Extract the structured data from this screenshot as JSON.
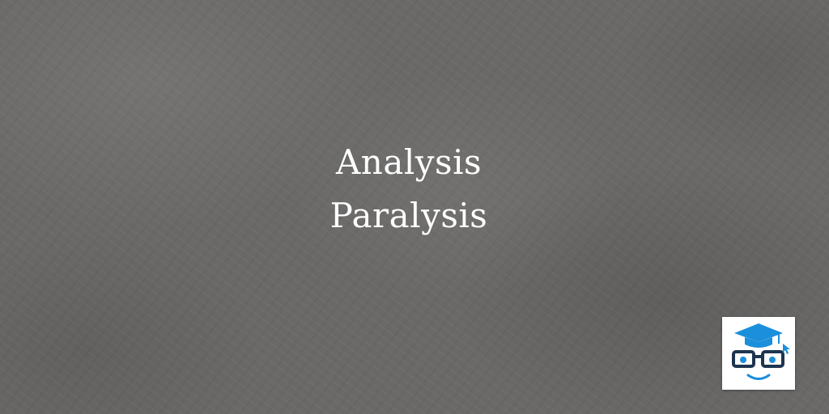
{
  "heading": {
    "line1": "Analysis",
    "line2": "Paralysis"
  },
  "logo": {
    "icon": "graduation-cap-face-icon",
    "colors": {
      "cap": "#1b8fdc",
      "glasses": "#1e3550",
      "eyes": "#1b8fdc",
      "smile": "#1b8fdc",
      "cursor": "#1b8fdc"
    }
  },
  "background": {
    "color": "#6a6968"
  }
}
